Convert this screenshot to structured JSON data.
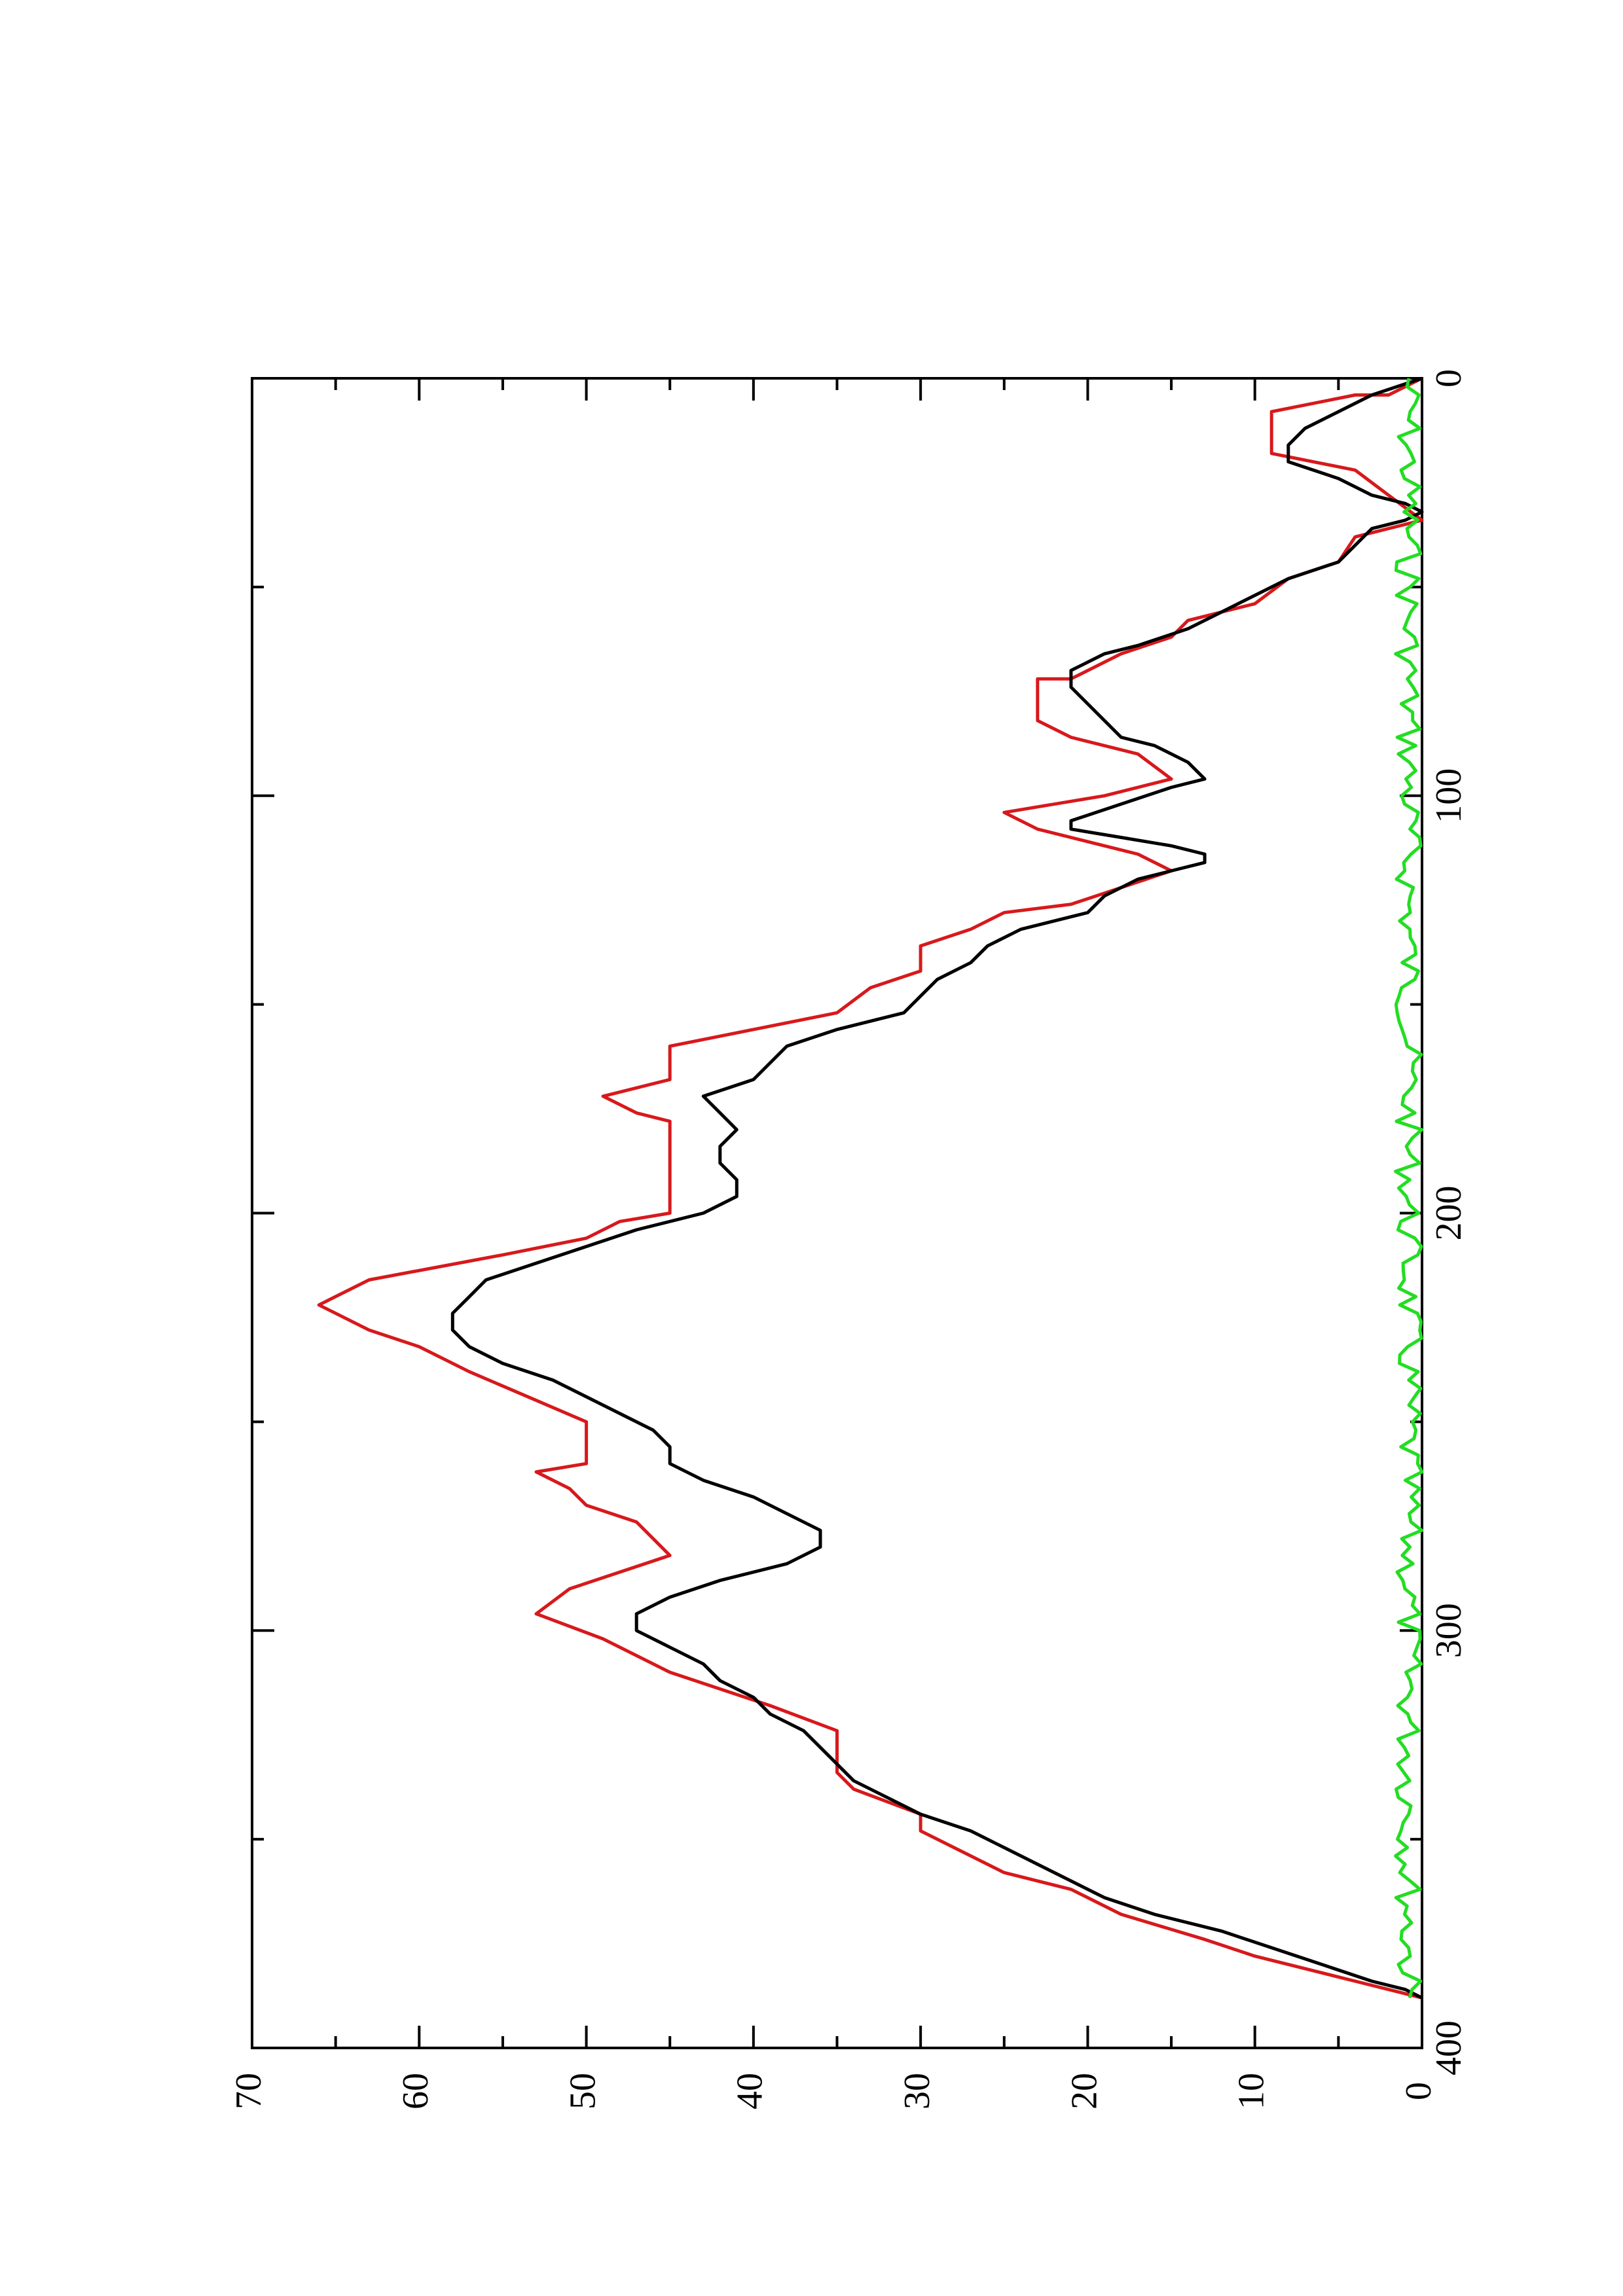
{
  "chart_data": {
    "type": "line",
    "orientation": "rotated-90-counterclockwise",
    "title": "",
    "xlabel": "",
    "ylabel": "",
    "xlim": [
      0,
      400
    ],
    "ylim": [
      0,
      70
    ],
    "x_ticks": [
      0,
      100,
      200,
      300,
      400
    ],
    "x_minor_ticks": [
      50,
      150,
      250,
      350
    ],
    "y_ticks": [
      0,
      10,
      20,
      30,
      40,
      50,
      60,
      70
    ],
    "y_minor_ticks": [
      5,
      15,
      25,
      35,
      45,
      55,
      65
    ],
    "grid": false,
    "legend": "none",
    "series": [
      {
        "color": "#d7191c",
        "style": "steps",
        "points": [
          [
            0,
            0
          ],
          [
            4,
            2
          ],
          [
            4,
            4
          ],
          [
            8,
            9
          ],
          [
            18,
            9
          ],
          [
            22,
            4
          ],
          [
            28,
            2
          ],
          [
            34,
            0
          ],
          [
            36,
            2
          ],
          [
            38,
            4
          ],
          [
            44,
            5
          ],
          [
            48,
            8
          ],
          [
            54,
            10
          ],
          [
            58,
            14
          ],
          [
            62,
            15
          ],
          [
            66,
            18
          ],
          [
            72,
            21
          ],
          [
            72,
            23
          ],
          [
            82,
            23
          ],
          [
            86,
            21
          ],
          [
            90,
            17
          ],
          [
            96,
            15
          ],
          [
            100,
            19
          ],
          [
            104,
            25
          ],
          [
            108,
            23
          ],
          [
            112,
            19
          ],
          [
            114,
            17
          ],
          [
            118,
            15
          ],
          [
            122,
            18
          ],
          [
            126,
            21
          ],
          [
            128,
            25
          ],
          [
            132,
            27
          ],
          [
            136,
            30
          ],
          [
            142,
            30
          ],
          [
            146,
            33
          ],
          [
            152,
            35
          ],
          [
            156,
            40
          ],
          [
            160,
            45
          ],
          [
            168,
            45
          ],
          [
            172,
            49
          ],
          [
            176,
            47
          ],
          [
            178,
            45
          ],
          [
            200,
            45
          ],
          [
            202,
            48
          ],
          [
            206,
            50
          ],
          [
            210,
            55
          ],
          [
            216,
            63
          ],
          [
            222,
            66
          ],
          [
            228,
            63
          ],
          [
            232,
            60
          ],
          [
            238,
            57
          ],
          [
            250,
            50
          ],
          [
            260,
            50
          ],
          [
            262,
            53
          ],
          [
            266,
            51
          ],
          [
            270,
            50
          ],
          [
            274,
            47
          ],
          [
            282,
            45
          ],
          [
            290,
            51
          ],
          [
            296,
            53
          ],
          [
            302,
            49
          ],
          [
            310,
            45
          ],
          [
            318,
            39
          ],
          [
            324,
            35
          ],
          [
            334,
            35
          ],
          [
            338,
            34
          ],
          [
            344,
            30
          ],
          [
            348,
            30
          ],
          [
            352,
            28
          ],
          [
            358,
            25
          ],
          [
            362,
            21
          ],
          [
            368,
            18
          ],
          [
            374,
            13
          ],
          [
            378,
            10
          ],
          [
            382,
            6
          ],
          [
            384,
            4
          ],
          [
            386,
            2
          ],
          [
            388,
            0
          ]
        ]
      },
      {
        "color": "#000000",
        "style": "line",
        "points": [
          [
            0,
            0
          ],
          [
            4,
            3
          ],
          [
            8,
            5
          ],
          [
            12,
            7
          ],
          [
            16,
            8
          ],
          [
            20,
            8
          ],
          [
            24,
            5
          ],
          [
            28,
            3
          ],
          [
            30,
            1
          ],
          [
            32,
            0
          ],
          [
            34,
            1
          ],
          [
            36,
            3
          ],
          [
            40,
            4
          ],
          [
            44,
            5
          ],
          [
            48,
            8
          ],
          [
            52,
            10
          ],
          [
            56,
            12
          ],
          [
            60,
            14
          ],
          [
            64,
            17
          ],
          [
            66,
            19
          ],
          [
            70,
            21
          ],
          [
            74,
            21
          ],
          [
            78,
            20
          ],
          [
            82,
            19
          ],
          [
            86,
            18
          ],
          [
            88,
            16
          ],
          [
            92,
            14
          ],
          [
            96,
            13
          ],
          [
            98,
            15
          ],
          [
            102,
            18
          ],
          [
            106,
            21
          ],
          [
            108,
            21
          ],
          [
            110,
            18
          ],
          [
            112,
            15
          ],
          [
            114,
            13
          ],
          [
            116,
            13
          ],
          [
            118,
            15
          ],
          [
            120,
            17
          ],
          [
            124,
            19
          ],
          [
            128,
            20
          ],
          [
            132,
            24
          ],
          [
            136,
            26
          ],
          [
            140,
            27
          ],
          [
            144,
            29
          ],
          [
            148,
            30
          ],
          [
            152,
            31
          ],
          [
            156,
            35
          ],
          [
            160,
            38
          ],
          [
            164,
            39
          ],
          [
            168,
            40
          ],
          [
            172,
            43
          ],
          [
            176,
            42
          ],
          [
            180,
            41
          ],
          [
            184,
            42
          ],
          [
            188,
            42
          ],
          [
            192,
            41
          ],
          [
            196,
            41
          ],
          [
            200,
            43
          ],
          [
            204,
            47
          ],
          [
            208,
            50
          ],
          [
            212,
            53
          ],
          [
            216,
            56
          ],
          [
            220,
            57
          ],
          [
            224,
            58
          ],
          [
            228,
            58
          ],
          [
            232,
            57
          ],
          [
            236,
            55
          ],
          [
            240,
            52
          ],
          [
            244,
            50
          ],
          [
            248,
            48
          ],
          [
            252,
            46
          ],
          [
            256,
            45
          ],
          [
            260,
            45
          ],
          [
            264,
            43
          ],
          [
            268,
            40
          ],
          [
            272,
            38
          ],
          [
            276,
            36
          ],
          [
            280,
            36
          ],
          [
            284,
            38
          ],
          [
            288,
            42
          ],
          [
            292,
            45
          ],
          [
            296,
            47
          ],
          [
            300,
            47
          ],
          [
            304,
            45
          ],
          [
            308,
            43
          ],
          [
            312,
            42
          ],
          [
            316,
            40
          ],
          [
            320,
            39
          ],
          [
            324,
            37
          ],
          [
            328,
            36
          ],
          [
            332,
            35
          ],
          [
            336,
            34
          ],
          [
            340,
            32
          ],
          [
            344,
            30
          ],
          [
            348,
            27
          ],
          [
            352,
            25
          ],
          [
            356,
            23
          ],
          [
            360,
            21
          ],
          [
            364,
            19
          ],
          [
            368,
            16
          ],
          [
            372,
            12
          ],
          [
            376,
            9
          ],
          [
            380,
            6
          ],
          [
            384,
            3
          ],
          [
            386,
            1
          ],
          [
            388,
            0
          ]
        ]
      },
      {
        "color": "#22dd22",
        "style": "line",
        "noise_curve": true,
        "x_range": [
          0,
          388
        ],
        "y_range": [
          0,
          1.6
        ]
      }
    ]
  },
  "axis_text": {
    "x0": "0",
    "x100": "100",
    "x200": "200",
    "x300": "300",
    "x400": "400",
    "y0": "0",
    "y10": "10",
    "y20": "20",
    "y30": "30",
    "y40": "40",
    "y50": "50",
    "y60": "60",
    "y70": "70"
  }
}
